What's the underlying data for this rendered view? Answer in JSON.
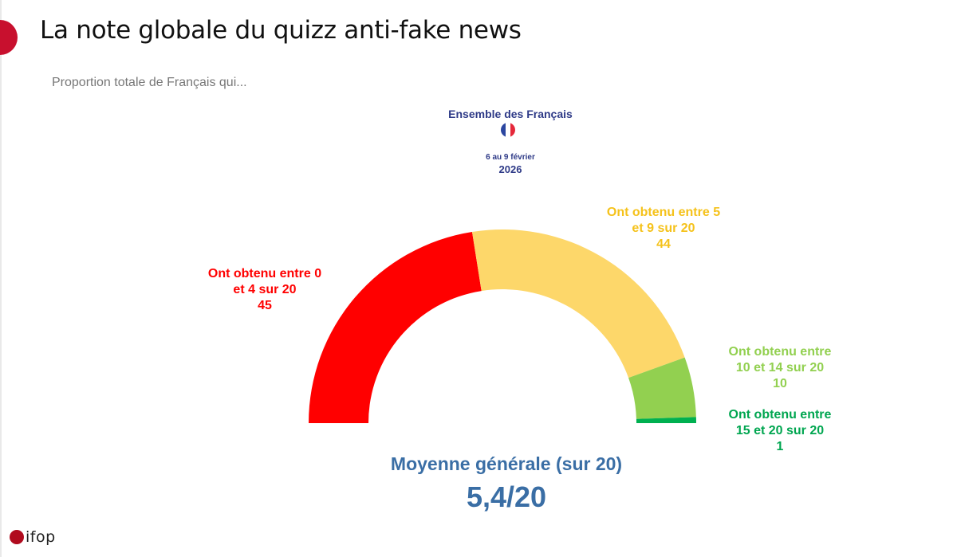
{
  "header": {
    "title": "La note globale du quizz anti-fake news",
    "subtitle": "Proportion totale de Français qui..."
  },
  "group": {
    "name": "Ensemble des Français",
    "date": "6 au 9 février",
    "year": "2026",
    "flag_colors": [
      "#2b46a0",
      "#ffffff",
      "#e5283a"
    ]
  },
  "chart_data": {
    "type": "pie",
    "variant": "half-donut gauge",
    "segments": [
      {
        "label_lines": [
          "Ont obtenu entre 0",
          "et 4 sur 20"
        ],
        "value": 45,
        "color": "#ff0000"
      },
      {
        "label_lines": [
          "Ont obtenu entre 5",
          "et 9 sur 20"
        ],
        "value": 44,
        "color": "#fdd76a"
      },
      {
        "label_lines": [
          "Ont obtenu entre",
          "10 et 14 sur 20"
        ],
        "value": 10,
        "color": "#92d050"
      },
      {
        "label_lines": [
          "Ont obtenu entre",
          "15 et 20 sur 20"
        ],
        "value": 1,
        "color": "#00b050"
      }
    ],
    "label_colors": [
      "#ff0000",
      "#f5c21b",
      "#92d050",
      "#00a650"
    ],
    "mean_label": "Moyenne générale (sur 20)",
    "mean_value": "5,4/20"
  },
  "footer": {
    "logo_text": "ifop",
    "logo_color": "#b00b1e"
  }
}
